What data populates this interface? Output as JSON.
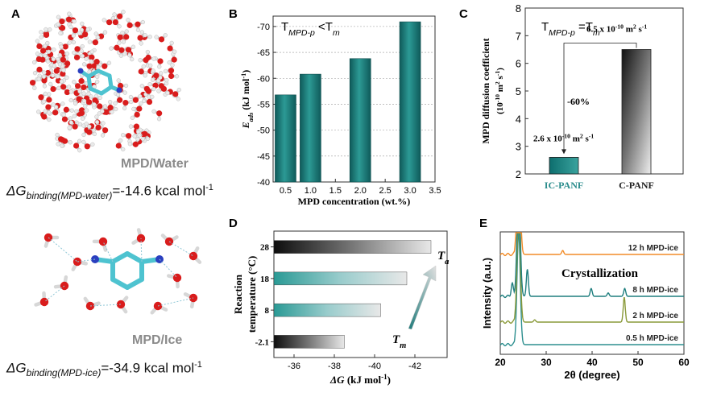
{
  "panels": {
    "A": {
      "letter": "A",
      "top_label": "MPD/Water",
      "top_dg_prefix": "ΔG",
      "top_dg_sub": "binding(MPD-water)",
      "top_dg_value": "=-14.6 kcal mol",
      "top_dg_exp": "-1",
      "bottom_label": "MPD/Ice",
      "bottom_dg_prefix": "ΔG",
      "bottom_dg_sub": "binding(MPD-ice)",
      "bottom_dg_value": "=-34.9 kcal mol",
      "bottom_dg_exp": "-1"
    },
    "B": {
      "letter": "B"
    },
    "C": {
      "letter": "C"
    },
    "D": {
      "letter": "D"
    },
    "E": {
      "letter": "E"
    }
  },
  "chart_data": [
    {
      "panel": "B",
      "type": "bar",
      "annotation": {
        "text": "T",
        "sub": "MPD-p",
        "rest": " <T",
        "sub2": "m"
      },
      "x": [
        0.5,
        1.0,
        2.0,
        3.0
      ],
      "values": [
        -56.8,
        -60.8,
        -63.8,
        -70.9
      ],
      "xlabel": "MPD concentration (wt.%)",
      "ylabel": {
        "main": "E",
        "sub": "ads",
        "unit": " (kJ mol",
        "exp": "-1",
        "close": ")"
      },
      "xlim": [
        0.25,
        3.5
      ],
      "xticks": [
        "0.5",
        "1.0",
        "1.5",
        "2.0",
        "2.5",
        "3.0",
        "3.5"
      ],
      "xtick_values": [
        0.5,
        1.0,
        1.5,
        2.0,
        2.5,
        3.0,
        3.5
      ],
      "ylim": [
        -40,
        -72
      ],
      "yticks": [
        "-40",
        "-45",
        "-50",
        "-55",
        "-60",
        "-65",
        "-70"
      ],
      "ytick_values": [
        -40,
        -45,
        -50,
        -55,
        -60,
        -65,
        -70
      ],
      "grid": true,
      "bar_color": "#1f7a7a"
    },
    {
      "panel": "C",
      "type": "bar",
      "annotation": {
        "text": "T",
        "sub": "MPD-p",
        "rest": " =T",
        "sub2": "m"
      },
      "categories": [
        "IC-PANF",
        "C-PANF"
      ],
      "category_colors": [
        "#2a8c8c",
        "#222222"
      ],
      "values": [
        2.6,
        6.5
      ],
      "value_labels": [
        {
          "pre": "2.6 x 10",
          "exp": "-10",
          "post": " m",
          "exp2": "2",
          "post2": " s",
          "exp3": "-1"
        },
        {
          "pre": "6.5 x 10",
          "exp": "-10",
          "post": " m",
          "exp2": "2",
          "post2": " s",
          "exp3": "-1"
        }
      ],
      "change_label": "-60%",
      "ylabel_line1": "MPD diffusion coefficient",
      "ylabel_line2": {
        "pre": "(10",
        "exp": "-10",
        "mid": " m",
        "exp2": "2",
        "post": " s",
        "exp3": "-1",
        "close": ")"
      },
      "ylim": [
        2,
        8
      ],
      "yticks": [
        "2",
        "3",
        "4",
        "5",
        "6",
        "7",
        "8"
      ],
      "ytick_values": [
        2,
        3,
        4,
        5,
        6,
        7,
        8
      ]
    },
    {
      "panel": "D",
      "type": "bar",
      "orientation": "horizontal",
      "categories": [
        "-2.1",
        "8",
        "18",
        "28"
      ],
      "values": [
        -38.5,
        -40.3,
        -41.6,
        -42.8
      ],
      "xlabel": {
        "main": "ΔG",
        "unit": " (kJ mol",
        "exp": "-1",
        "close": ")"
      },
      "ylabel_line1": "Reaction",
      "ylabel_line2": "temperature (°C)",
      "xlim": [
        -35,
        -43.6
      ],
      "xticks": [
        "-36",
        "-38",
        "-40",
        "-42"
      ],
      "xtick_values": [
        -36,
        -38,
        -40,
        -42
      ],
      "arrow_top": {
        "text": "T",
        "sub": "a"
      },
      "arrow_bottom": {
        "text": "T",
        "sub": "m"
      }
    },
    {
      "panel": "E",
      "type": "line",
      "xlabel": "2θ (degree)",
      "ylabel": "Intensity (a.u.)",
      "xlim": [
        20,
        60
      ],
      "xticks": [
        "20",
        "30",
        "40",
        "50",
        "60"
      ],
      "xtick_values": [
        20,
        30,
        40,
        50,
        60
      ],
      "annotation": "Crystallization",
      "series": [
        {
          "name": "0.5 h MPD-ice",
          "color": "#2d8f8f",
          "peaks": [
            [
              24.0,
              1.0
            ]
          ]
        },
        {
          "name": "2 h MPD-ice",
          "color": "#8a9a3a",
          "peaks": [
            [
              24.0,
              1.0
            ],
            [
              47.0,
              0.22
            ],
            [
              27.5,
              0.02
            ]
          ]
        },
        {
          "name": "8 h MPD-ice",
          "color": "#1f7f7f",
          "peaks": [
            [
              24.0,
              1.0
            ],
            [
              22.6,
              0.12
            ],
            [
              25.9,
              0.24
            ],
            [
              39.8,
              0.07
            ],
            [
              43.5,
              0.03
            ],
            [
              47.1,
              0.07
            ]
          ]
        },
        {
          "name": "12 h MPD-ice",
          "color": "#f28c28",
          "peaks": [
            [
              24.0,
              1.0
            ],
            [
              33.6,
              0.035
            ]
          ]
        }
      ]
    }
  ]
}
